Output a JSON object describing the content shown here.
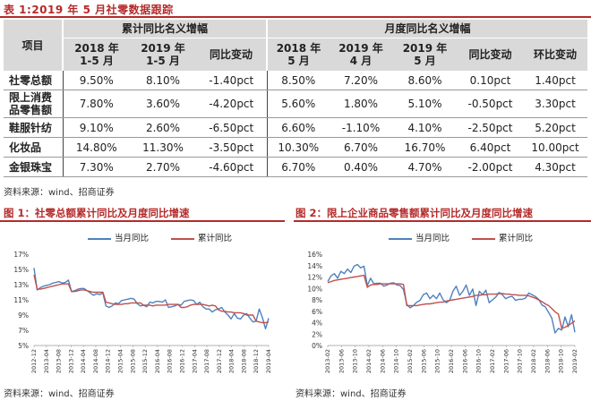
{
  "table": {
    "title": "表 1:2019 年 5 月社零数据跟踪",
    "header": {
      "item_label": "项目",
      "group_cumulative": "累计同比名义增幅",
      "group_monthly": "月度同比名义增幅",
      "columns": [
        "2018 年\n1-5 月",
        "2019 年\n1-5 月",
        "同比变动",
        "2018 年\n5 月",
        "2019 年\n4 月",
        "2019 年\n5 月",
        "同比变动",
        "环比变动"
      ]
    },
    "rows": [
      {
        "name": "社零总额",
        "values": [
          "9.50%",
          "8.10%",
          "-1.40pct",
          "8.50%",
          "7.20%",
          "8.60%",
          "0.10pct",
          "1.40pct"
        ]
      },
      {
        "name": "限上消费\n品零售额",
        "values": [
          "7.80%",
          "3.60%",
          "-4.20pct",
          "5.60%",
          "1.80%",
          "5.10%",
          "-0.50pct",
          "3.30pct"
        ]
      },
      {
        "name": "鞋服针纺",
        "values": [
          "9.10%",
          "2.60%",
          "-6.50pct",
          "6.60%",
          "-1.10%",
          "4.10%",
          "-2.50pct",
          "5.20pct"
        ]
      },
      {
        "name": "化妆品",
        "values": [
          "14.80%",
          "11.30%",
          "-3.50pct",
          "10.30%",
          "6.70%",
          "16.70%",
          "6.40pct",
          "10.00pct"
        ]
      },
      {
        "name": "金银珠宝",
        "values": [
          "7.30%",
          "2.70%",
          "-4.60pct",
          "6.70%",
          "0.40%",
          "4.70%",
          "-2.00pct",
          "4.30pct"
        ]
      }
    ],
    "source": "资料来源：wind、招商证券"
  },
  "figure1": {
    "title": "图 1：社零总额累计同比及月度同比增速",
    "source": "资料来源：wind、招商证券"
  },
  "figure2": {
    "title": "图 2：限上企业商品零售额累计同比及月度同比增速",
    "source": "资料来源：wind、招商证券"
  },
  "colors": {
    "monthly": "#4f81bd",
    "cumulative": "#c0504d",
    "accent": "#b52a2a",
    "header_bg": "#d9d9d9"
  },
  "chart_data": [
    {
      "type": "line",
      "ylim": [
        5,
        17
      ],
      "yticks": [
        "5%",
        "7%",
        "9%",
        "11%",
        "13%",
        "15%",
        "17%"
      ],
      "xticks": [
        "2012-12",
        "2013-04",
        "2013-08",
        "2013-12",
        "2014-04",
        "2014-08",
        "2014-12",
        "2015-04",
        "2015-08",
        "2015-12",
        "2016-04",
        "2016-08",
        "2016-12",
        "2017-04",
        "2017-08",
        "2017-12",
        "2018-04",
        "2018-08",
        "2018-12",
        "2019-04"
      ],
      "legend": "top",
      "series": [
        {
          "name": "当月同比",
          "color": "#4f81bd",
          "values": [
            15.2,
            12.3,
            12.6,
            12.8,
            12.9,
            13.0,
            13.2,
            13.3,
            13.4,
            13.2,
            13.3,
            13.6,
            12.1,
            12.2,
            12.4,
            12.5,
            12.5,
            12.2,
            11.9,
            11.6,
            11.8,
            11.7,
            11.9,
            10.2,
            10.0,
            10.2,
            10.6,
            10.5,
            10.9,
            11.0,
            11.1,
            11.2,
            11.1,
            10.5,
            10.2,
            10.3,
            10.1,
            10.7,
            10.6,
            10.8,
            10.8,
            10.7,
            11.0,
            10.0,
            10.1,
            10.2,
            10.4,
            10.3,
            10.8,
            10.9,
            11.0,
            10.9,
            10.4,
            10.7,
            10.1,
            9.8,
            9.8,
            9.4,
            9.7,
            9.8,
            10.0,
            9.4,
            9.0,
            8.5,
            9.2,
            8.6,
            8.5,
            9.0,
            9.2,
            8.6,
            8.1,
            8.2,
            9.8,
            8.7,
            7.2,
            8.6
          ]
        },
        {
          "name": "累计同比",
          "color": "#c0504d",
          "values": [
            14.3,
            12.4,
            12.4,
            12.5,
            12.6,
            12.7,
            12.8,
            12.9,
            13.0,
            13.1,
            13.1,
            13.1,
            12.1,
            12.1,
            12.2,
            12.3,
            12.3,
            12.2,
            12.1,
            12.0,
            12.0,
            12.0,
            12.0,
            10.7,
            10.6,
            10.5,
            10.4,
            10.4,
            10.4,
            10.5,
            10.5,
            10.6,
            10.6,
            10.6,
            10.6,
            10.3,
            10.3,
            10.3,
            10.2,
            10.3,
            10.3,
            10.3,
            10.3,
            10.4,
            10.4,
            10.4,
            10.4,
            10.0,
            10.0,
            10.1,
            10.3,
            10.4,
            10.4,
            10.4,
            10.4,
            10.3,
            10.2,
            10.3,
            10.2,
            9.7,
            9.5,
            9.5,
            9.4,
            9.4,
            9.3,
            9.3,
            9.3,
            9.2,
            9.0,
            9.0,
            9.0,
            8.2,
            8.1,
            8.0,
            8.0,
            8.1
          ]
        }
      ]
    },
    {
      "type": "line",
      "ylim": [
        0,
        16
      ],
      "yticks": [
        "0%",
        "2%",
        "4%",
        "6%",
        "8%",
        "10%",
        "12%",
        "14%",
        "16%"
      ],
      "xticks": [
        "2013-02",
        "2013-06",
        "2013-10",
        "2014-02",
        "2014-06",
        "2014-10",
        "2015-02",
        "2015-06",
        "2015-10",
        "2016-02",
        "2016-06",
        "2016-10",
        "2017-02",
        "2017-06",
        "2017-10",
        "2018-02",
        "2018-06",
        "2018-10",
        "2019-02"
      ],
      "legend": "top",
      "series": [
        {
          "name": "当月同比",
          "color": "#4f81bd",
          "values": [
            11.2,
            12.2,
            12.6,
            11.8,
            13.0,
            12.6,
            13.4,
            12.8,
            13.9,
            14.2,
            13.6,
            13.9,
            10.5,
            11.8,
            10.8,
            10.9,
            10.9,
            10.4,
            10.6,
            10.9,
            11.0,
            10.6,
            10.5,
            9.8,
            7.2,
            6.6,
            7.0,
            7.6,
            7.9,
            8.9,
            9.2,
            8.2,
            8.8,
            8.2,
            9.2,
            8.0,
            7.5,
            7.9,
            9.5,
            10.4,
            8.8,
            9.5,
            10.6,
            8.8,
            9.9,
            7.0,
            9.5,
            8.9,
            9.7,
            7.5,
            8.0,
            8.5,
            9.3,
            8.9,
            8.2,
            8.5,
            8.6,
            7.9,
            8.1,
            8.1,
            8.3,
            9.2,
            8.9,
            8.6,
            8.1,
            7.1,
            6.8,
            5.8,
            4.8,
            2.2,
            3.0,
            2.7,
            5.0,
            3.3,
            5.4,
            2.3
          ]
        },
        {
          "name": "累计同比",
          "color": "#c0504d",
          "values": [
            11.0,
            11.2,
            11.4,
            11.5,
            11.6,
            11.7,
            11.8,
            11.9,
            12.0,
            12.1,
            12.2,
            12.3,
            10.2,
            10.6,
            10.7,
            10.7,
            10.8,
            10.8,
            10.8,
            10.8,
            10.8,
            10.8,
            10.8,
            10.7,
            7.0,
            7.0,
            7.0,
            7.0,
            7.1,
            7.2,
            7.3,
            7.3,
            7.4,
            7.5,
            7.6,
            7.6,
            7.8,
            7.9,
            8.0,
            8.1,
            8.2,
            8.3,
            8.4,
            8.5,
            8.6,
            8.8,
            8.8,
            8.9,
            8.9,
            9.0,
            9.0,
            9.0,
            9.1,
            9.1,
            9.0,
            9.0,
            8.9,
            8.9,
            8.8,
            8.8,
            8.8,
            8.7,
            8.5,
            8.3,
            8.0,
            7.7,
            7.3,
            7.0,
            6.5,
            5.9,
            5.5,
            3.0,
            3.2,
            3.5,
            3.9,
            4.3
          ]
        }
      ]
    }
  ]
}
